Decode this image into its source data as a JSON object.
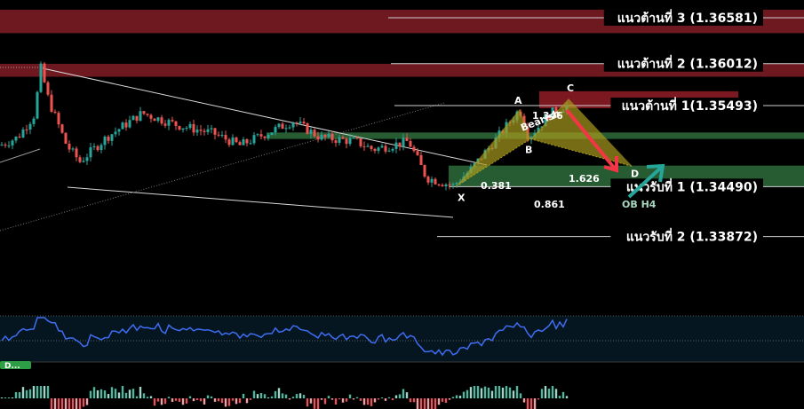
{
  "chart_data": {
    "type": "candlestick",
    "price_range": [
      1.33,
      1.368
    ],
    "levels": [
      {
        "name": "resistance-3",
        "label": "แนวต้านที่ 3 (1.36581)",
        "price": 1.36581
      },
      {
        "name": "resistance-2",
        "label": "แนวต้านที่ 2 (1.36012)",
        "price": 1.36012
      },
      {
        "name": "resistance-1",
        "label": "แนวต้านที่ 1(1.35493)",
        "price": 1.35493
      },
      {
        "name": "support-1",
        "label": "แนวรับที่ 1 (1.34490)",
        "price": 1.3449
      },
      {
        "name": "support-2",
        "label": "แนวรับที่ 2 (1.33872)",
        "price": 1.33872
      }
    ],
    "zones": [
      {
        "name": "resistance-zone-3",
        "type": "supply",
        "from": 1.3639,
        "to": 1.3668,
        "color": "#7a1c22"
      },
      {
        "name": "resistance-zone-2",
        "type": "supply",
        "from": 1.3585,
        "to": 1.3601,
        "color": "#7a1c22"
      },
      {
        "name": "resistance-zone-1",
        "type": "supply",
        "from": 1.3546,
        "to": 1.3567,
        "color": "#8a1c24"
      },
      {
        "name": "mid-demand-zone",
        "type": "demand",
        "from": 1.3508,
        "to": 1.3516,
        "color": "#2e6b3a"
      },
      {
        "name": "ob-h4-zone",
        "type": "demand",
        "from": 1.3449,
        "to": 1.3475,
        "color": "#2e6b3a"
      }
    ],
    "pattern": {
      "name": "Bearish",
      "points": [
        {
          "label": "X",
          "price": 1.3449
        },
        {
          "label": "A",
          "price": 1.3545
        },
        {
          "label": "B",
          "price": 1.3508
        },
        {
          "label": "C",
          "price": 1.3558
        },
        {
          "label": "D",
          "price": 1.3474
        }
      ],
      "ratios": [
        {
          "name": "xab",
          "value": "0.381"
        },
        {
          "name": "xad",
          "value": "0.861"
        },
        {
          "name": "abc",
          "value": "1.346"
        },
        {
          "name": "bcd",
          "value": "1.626"
        }
      ]
    },
    "ob_label": "OB H4",
    "colors": {
      "up": "#26a69a",
      "down": "#ef5350",
      "rsi": "#3d6df2",
      "arrow_down": "#f23645",
      "arrow_up": "#26a69a",
      "pattern_fill": "#a89a1e"
    },
    "candles": [],
    "rsi": [],
    "histogram": []
  },
  "badge": "D..."
}
